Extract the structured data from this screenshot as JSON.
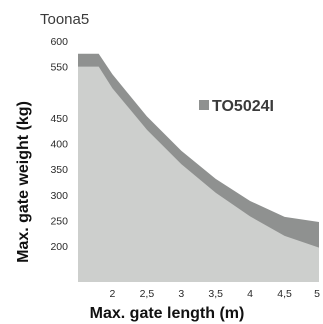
{
  "chart_data": {
    "type": "area",
    "title": "Toona5",
    "xlabel": "Max. gate length (m)",
    "ylabel": "Max. gate weight (kg)",
    "xlim": [
      1.5,
      5
    ],
    "ylim": [
      130,
      600
    ],
    "x_ticks": [
      "2",
      "2,5",
      "3",
      "3,5",
      "4",
      "4,5",
      "5"
    ],
    "y_ticks": [
      "600",
      "550",
      "450",
      "400",
      "350",
      "300",
      "250",
      "200"
    ],
    "series": [
      {
        "name": "TO5024I",
        "color": "#8f9190",
        "x": [
          1.5,
          1.8,
          2.0,
          2.5,
          3.0,
          3.5,
          4.0,
          4.5,
          5.0
        ],
        "values": [
          575,
          575,
          535,
          453,
          386,
          331,
          288,
          257,
          247
        ]
      }
    ],
    "base_area": {
      "color": "#cdcfcd",
      "x": [
        1.5,
        1.8,
        2.0,
        2.5,
        3.0,
        3.5,
        4.0,
        4.5,
        5.0
      ],
      "values": [
        550,
        550,
        508,
        427,
        360,
        304,
        258,
        220,
        197
      ]
    },
    "legend": {
      "placement": "center-right"
    }
  }
}
